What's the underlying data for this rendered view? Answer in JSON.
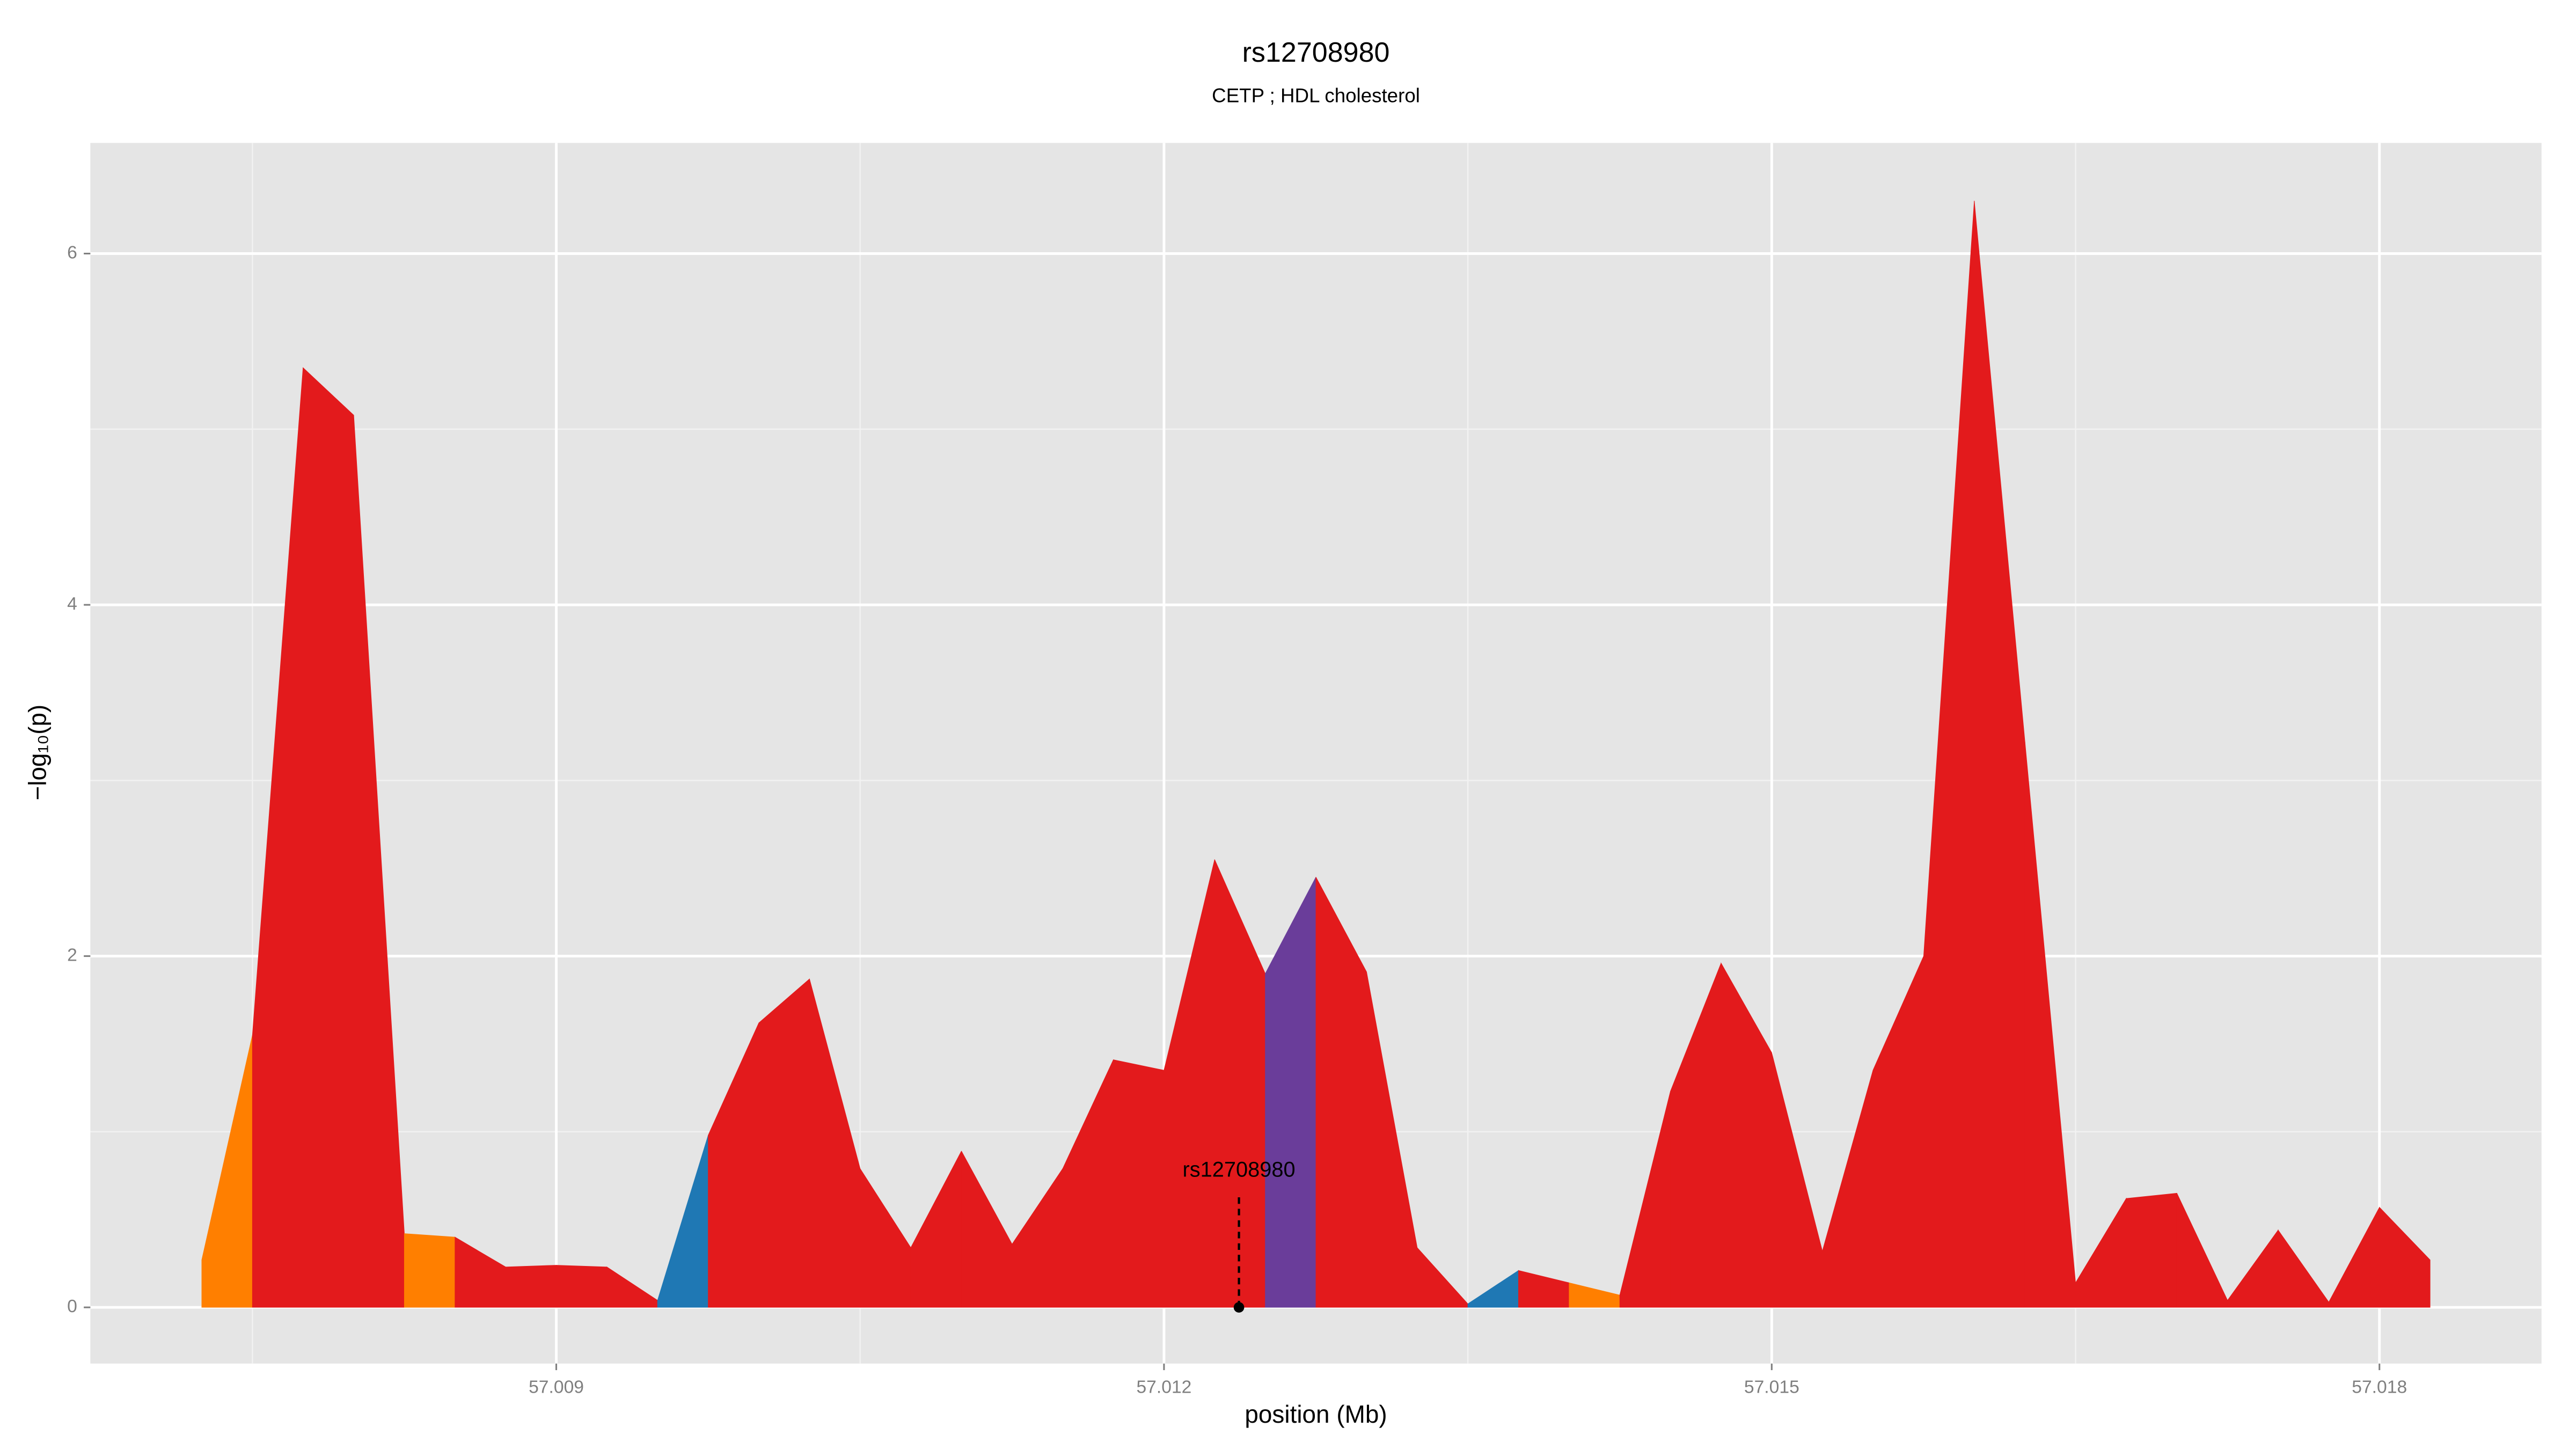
{
  "chart_data": {
    "type": "area",
    "title": "rs12708980",
    "subtitle": "CETP ; HDL cholesterol",
    "xlabel": "position (Mb)",
    "ylabel": "−log₁₀(p)",
    "x": [
      57.00725,
      57.0075,
      57.00775,
      57.008,
      57.00825,
      57.0085,
      57.00875,
      57.009,
      57.00925,
      57.0095,
      57.00975,
      57.01,
      57.01025,
      57.0105,
      57.01075,
      57.011,
      57.01125,
      57.0115,
      57.01175,
      57.012,
      57.01225,
      57.0125,
      57.01275,
      57.013,
      57.01325,
      57.0135,
      57.01375,
      57.014,
      57.01425,
      57.0145,
      57.01475,
      57.015,
      57.01525,
      57.0155,
      57.01575,
      57.016,
      57.01625,
      57.0165,
      57.01675,
      57.017,
      57.01725,
      57.0175,
      57.01775,
      57.018,
      57.01825
    ],
    "values": [
      0.27,
      1.55,
      5.35,
      5.08,
      0.42,
      0.4,
      0.23,
      0.24,
      0.23,
      0.04,
      0.98,
      1.62,
      1.87,
      0.79,
      0.34,
      0.89,
      0.36,
      0.79,
      1.41,
      1.35,
      2.55,
      1.9,
      2.45,
      1.91,
      0.34,
      0.02,
      0.21,
      0.14,
      0.07,
      1.23,
      1.96,
      1.45,
      0.32,
      1.35,
      2.0,
      6.3,
      3.22,
      0.14,
      0.62,
      0.65,
      0.04,
      0.44,
      0.03,
      0.57,
      0.27
    ],
    "colors": [
      "#ff7f00",
      "#e31a1c",
      "#e31a1c",
      "#e31a1c",
      "#ff7f00",
      "#e31a1c",
      "#e31a1c",
      "#e31a1c",
      "#e31a1c",
      "#1f78b4",
      "#e31a1c",
      "#e31a1c",
      "#e31a1c",
      "#e31a1c",
      "#e31a1c",
      "#e31a1c",
      "#e31a1c",
      "#e31a1c",
      "#e31a1c",
      "#e31a1c",
      "#e31a1c",
      "#6a3d9a",
      "#e31a1c",
      "#e31a1c",
      "#e31a1c",
      "#1f78b4",
      "#e31a1c",
      "#ff7f00",
      "#e31a1c",
      "#e31a1c",
      "#e31a1c",
      "#e31a1c",
      "#e31a1c",
      "#e31a1c",
      "#e31a1c",
      "#e31a1c",
      "#e31a1c",
      "#e31a1c",
      "#e31a1c",
      "#e31a1c",
      "#e31a1c",
      "#e31a1c",
      "#e31a1c",
      "#e31a1c",
      "#e31a1c"
    ],
    "annotation": {
      "text": "rs12708980",
      "x": 57.01237,
      "y": 0
    },
    "xlim": [
      57.0067,
      57.0188
    ],
    "ylim": [
      -0.32,
      6.63
    ],
    "xticks": [
      57.009,
      57.012,
      57.015,
      57.018
    ],
    "yticks": [
      0,
      2,
      4,
      6
    ],
    "grid": true
  }
}
